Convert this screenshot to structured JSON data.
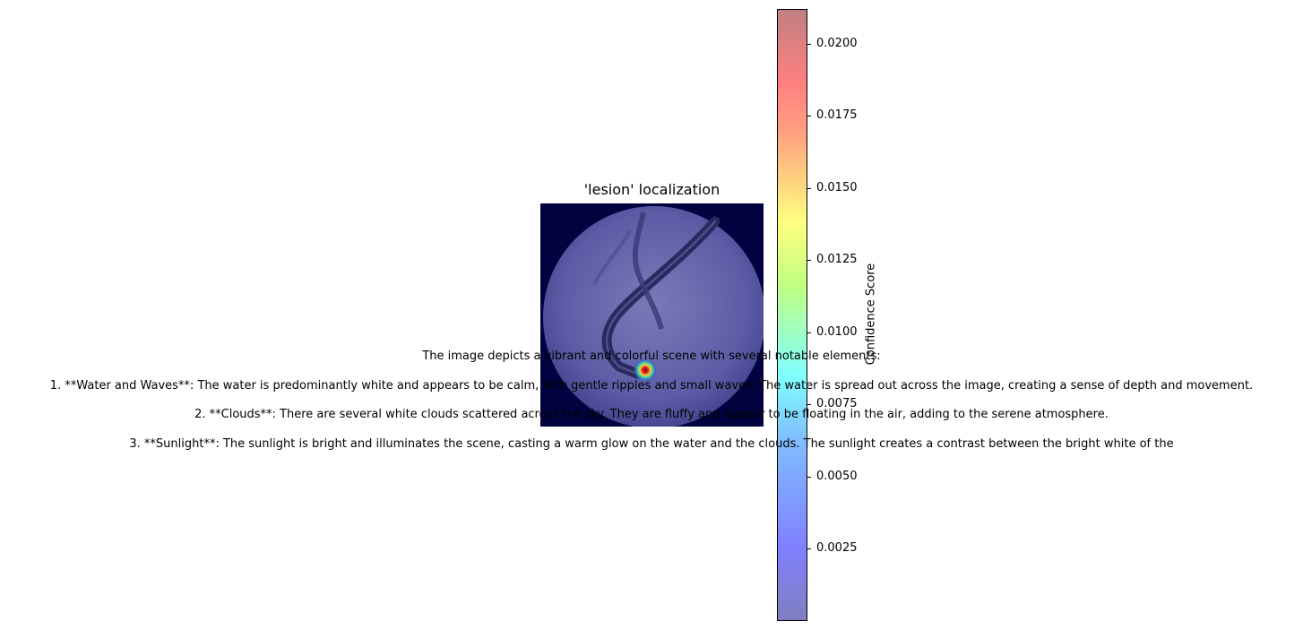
{
  "chart_data": {
    "type": "heatmap",
    "title": "'lesion' localization",
    "colorbar": {
      "label": "Confidence Score",
      "colormap": "jet",
      "alpha": 0.5,
      "range": [
        0.0,
        0.0212
      ],
      "ticks": [
        {
          "value": 0.0025,
          "label": "0.0025"
        },
        {
          "value": 0.005,
          "label": "0.0050"
        },
        {
          "value": 0.0075,
          "label": "0.0075"
        },
        {
          "value": 0.01,
          "label": "0.0100"
        },
        {
          "value": 0.0125,
          "label": "0.0125"
        },
        {
          "value": 0.015,
          "label": "0.0150"
        },
        {
          "value": 0.0175,
          "label": "0.0175"
        },
        {
          "value": 0.02,
          "label": "0.0200"
        }
      ]
    },
    "hotspot": {
      "peak_value": 0.0212
    }
  },
  "caption": {
    "lines": [
      "The image depicts a vibrant and colorful scene with several notable elements:",
      "1. **Water and Waves**: The water is predominantly white and appears to be calm, with gentle ripples and small waves. The water is spread out across the image, creating a sense of depth and movement.",
      "2. **Clouds**: There are several white clouds scattered across the sky. They are fluffy and appear to be floating in the air, adding to the serene atmosphere.",
      "3. **Sunlight**: The sunlight is bright and illuminates the scene, casting a warm glow on the water and the clouds. The sunlight creates a contrast between the bright white of the"
    ]
  },
  "colors": {
    "background": "#020240",
    "image_tint": "#6a6aaa",
    "hot_red": "#c01010",
    "hot_yellow": "#e8d030"
  }
}
